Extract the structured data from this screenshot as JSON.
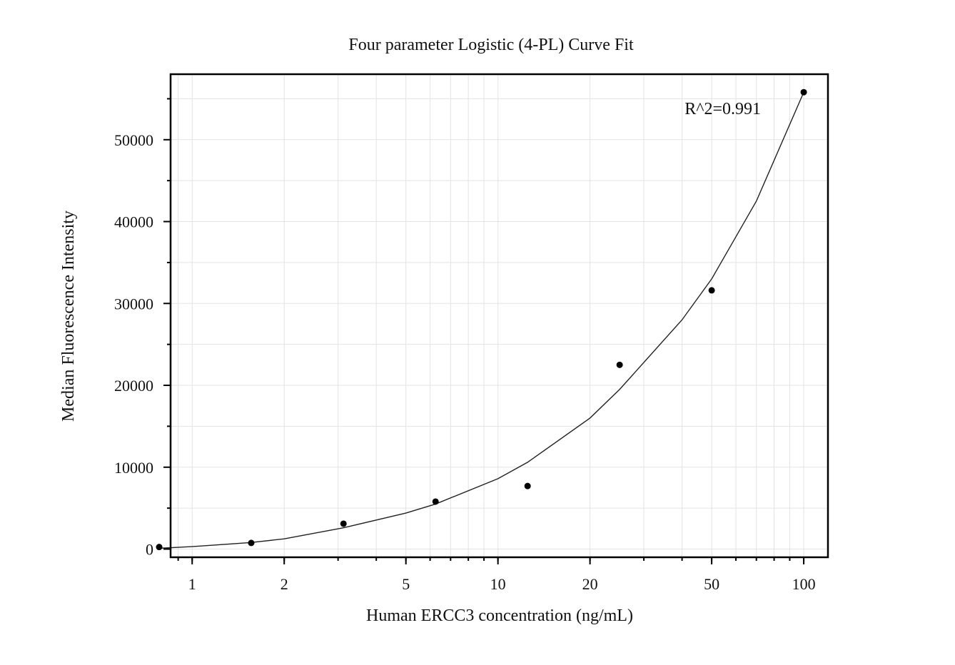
{
  "chart_data": {
    "type": "scatter",
    "title": "Four parameter Logistic (4-PL) Curve Fit",
    "xlabel": "Human ERCC3 concentration (ng/mL)",
    "ylabel": "Median Fluorescence Intensity",
    "x_scale": "log",
    "xlim": [
      0.85,
      120
    ],
    "ylim": [
      -1000,
      58000
    ],
    "x_ticks": [
      1,
      2,
      5,
      10,
      20,
      50,
      100
    ],
    "x_tick_labels": [
      "1",
      "2",
      "5",
      "10",
      "20",
      "50",
      "100"
    ],
    "y_ticks": [
      0,
      10000,
      20000,
      30000,
      40000,
      50000
    ],
    "y_tick_labels": [
      "0",
      "10000",
      "20000",
      "30000",
      "40000",
      "50000"
    ],
    "grid": true,
    "annotation": "R^2=0.991",
    "points": {
      "x": [
        0.78,
        1.56,
        3.125,
        6.25,
        12.5,
        25,
        50,
        100
      ],
      "y": [
        250,
        750,
        3100,
        5800,
        7700,
        22500,
        31600,
        55800
      ]
    },
    "fit_curve": {
      "x": [
        0.78,
        1,
        1.56,
        2,
        3.125,
        5,
        6.25,
        10,
        12.5,
        20,
        25,
        40,
        50,
        70,
        100
      ],
      "y": [
        100,
        300,
        800,
        1250,
        2600,
        4400,
        5500,
        8600,
        10600,
        16000,
        19500,
        28000,
        33000,
        42500,
        55800
      ]
    }
  }
}
